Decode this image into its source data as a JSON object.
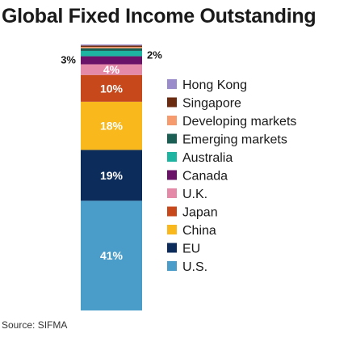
{
  "chart_data": {
    "type": "bar",
    "stacked": true,
    "title": "Global Fixed Income Outstanding",
    "source": "Source: SIFMA",
    "unit": "%",
    "categories": [
      ""
    ],
    "series": [
      {
        "name": "U.S.",
        "value": 41,
        "label": "41%",
        "color": "#4a9cc9"
      },
      {
        "name": "EU",
        "value": 19,
        "label": "19%",
        "color": "#0c2c5c"
      },
      {
        "name": "China",
        "value": 18,
        "label": "18%",
        "color": "#f9b91c"
      },
      {
        "name": "Japan",
        "value": 10,
        "label": "10%",
        "color": "#c6481b"
      },
      {
        "name": "U.K.",
        "value": 4,
        "label": "4%",
        "color": "#e48aa8"
      },
      {
        "name": "Canada",
        "value": 3,
        "label": "3%",
        "color": "#6a1168"
      },
      {
        "name": "Australia",
        "value": 2,
        "label": "2%",
        "color": "#1db5a1"
      },
      {
        "name": "Emerging markets",
        "value": 1,
        "label": "",
        "color": "#1a5e54"
      },
      {
        "name": "Developing markets",
        "value": 0.5,
        "label": "",
        "color": "#f59b6d"
      },
      {
        "name": "Singapore",
        "value": 0.5,
        "label": "",
        "color": "#6b2b10"
      },
      {
        "name": "Hong Kong",
        "value": 0.4,
        "label": "",
        "color": "#9a8bcb"
      }
    ],
    "legend_order": [
      "Hong Kong",
      "Singapore",
      "Developing markets",
      "Emerging markets",
      "Australia",
      "Canada",
      "U.K.",
      "Japan",
      "China",
      "EU",
      "U.S."
    ],
    "legend_position": "right"
  }
}
